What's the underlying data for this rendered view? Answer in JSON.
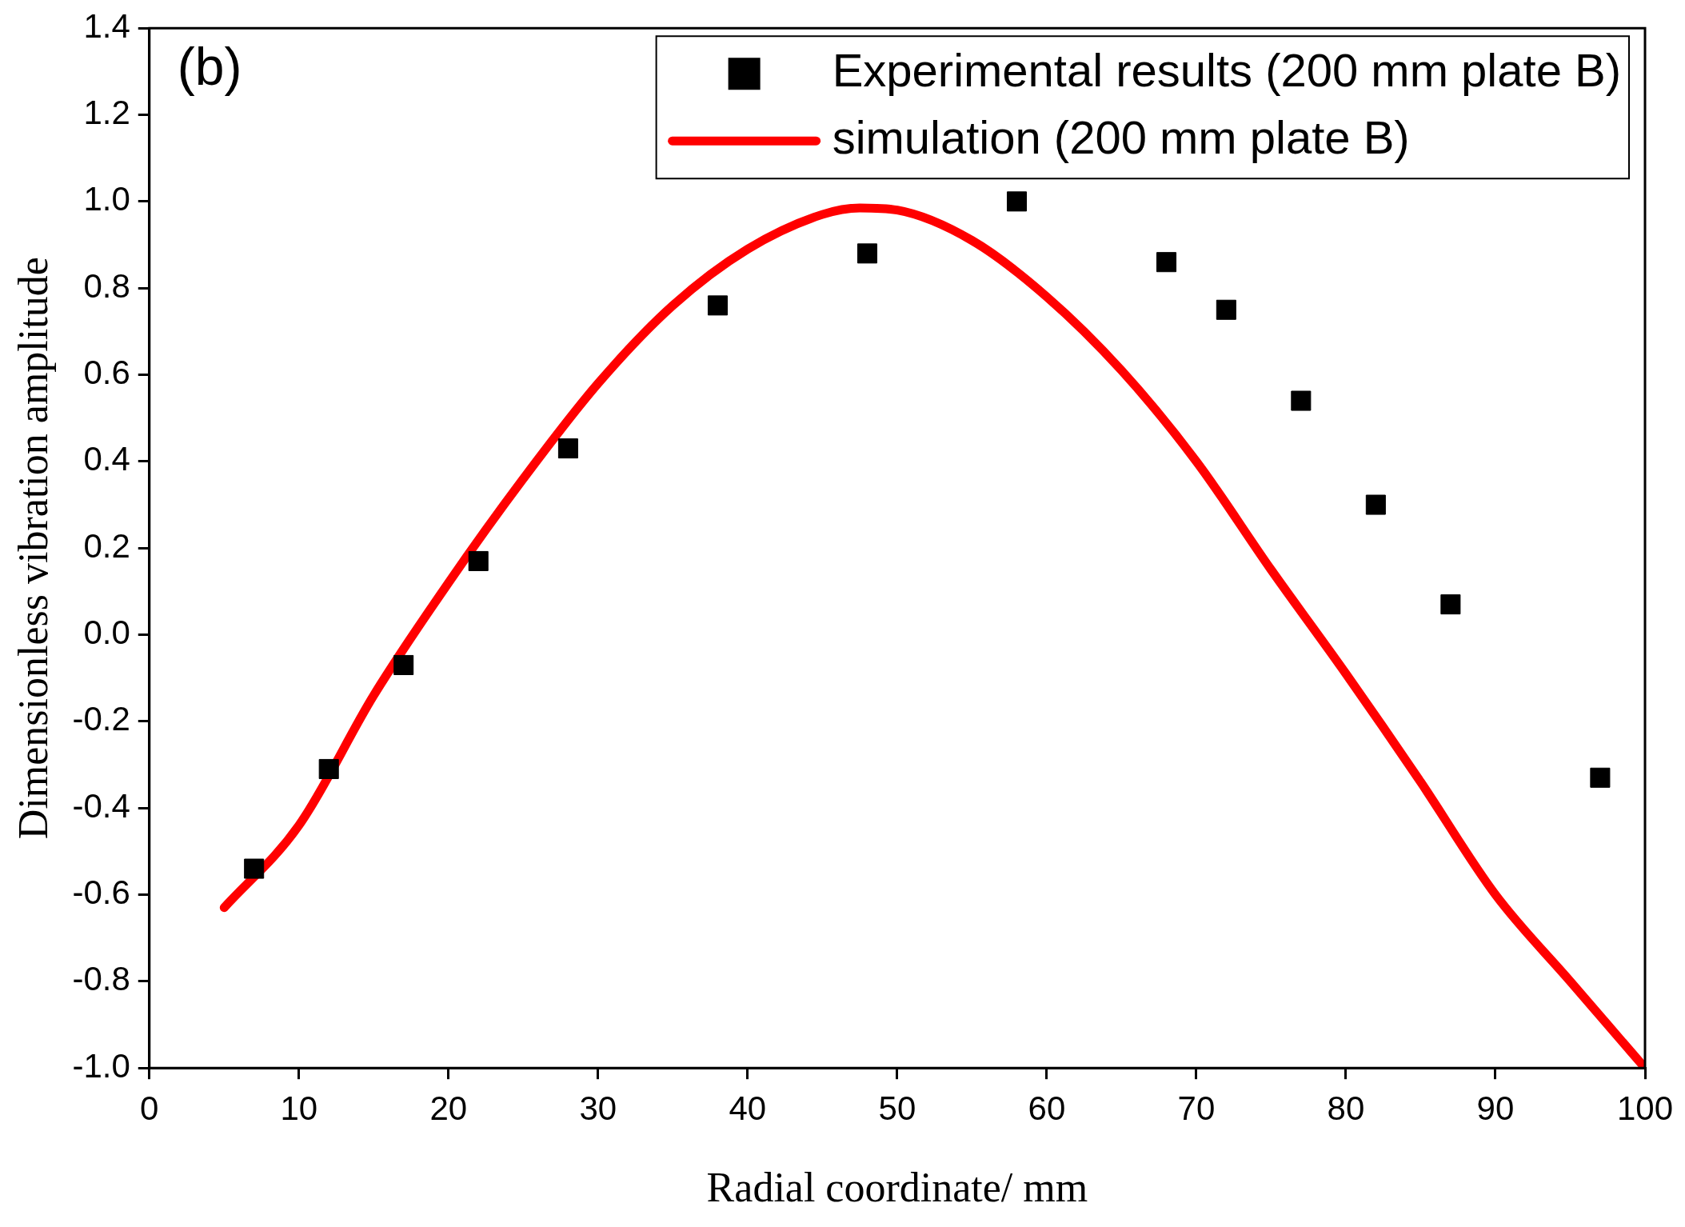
{
  "chart_data": {
    "type": "scatter",
    "xlabel": "Radial coordinate/ mm",
    "ylabel": "Dimensionless vibration amplitude",
    "annotations": [
      "(b)"
    ],
    "xlim": [
      0,
      100
    ],
    "xticks": [
      0,
      10,
      20,
      30,
      40,
      50,
      60,
      70,
      80,
      90,
      100
    ],
    "ylim": [
      -1.0,
      1.4
    ],
    "yticks": [
      {
        "value": -1.0,
        "label": "-1.0"
      },
      {
        "value": -0.8,
        "label": "-0.8"
      },
      {
        "value": -0.6,
        "label": "-0.6"
      },
      {
        "value": -0.4,
        "label": "-0.4"
      },
      {
        "value": -0.2,
        "label": "-0.2"
      },
      {
        "value": 0,
        "label": "0.0"
      },
      {
        "value": 0.2,
        "label": "0.2"
      },
      {
        "value": 0.4,
        "label": "0.4"
      },
      {
        "value": 0.6,
        "label": "0.6"
      },
      {
        "value": 0.8,
        "label": "0.8"
      },
      {
        "value": 1.0,
        "label": "1.0"
      },
      {
        "value": 1.2,
        "label": "1.2"
      },
      {
        "value": 1.4,
        "label": "1.4"
      }
    ],
    "grid": false,
    "legend": "top right",
    "series": [
      {
        "name": "Experimental results (200 mm plate B)",
        "marker": "square",
        "color": "#000000",
        "x": [
          7,
          12,
          17,
          22,
          28,
          38,
          48,
          58,
          68,
          72,
          77,
          82,
          87,
          97
        ],
        "values": [
          -0.54,
          -0.31,
          -0.07,
          0.17,
          0.43,
          0.76,
          0.88,
          1.0,
          0.86,
          0.75,
          0.54,
          0.3,
          0.07,
          -0.33
        ]
      },
      {
        "name": "simulation (200 mm plate B)",
        "type": "line",
        "marker": "none",
        "line_style": "solid",
        "color": "#ff0000",
        "x": [
          5,
          10,
          15,
          20,
          25,
          30,
          35,
          40,
          45,
          47.5,
          50,
          55,
          60,
          65,
          70,
          75,
          80,
          85,
          90,
          95,
          100
        ],
        "values": [
          -0.63,
          -0.44,
          -0.14,
          0.12,
          0.36,
          0.58,
          0.76,
          0.89,
          0.97,
          0.985,
          0.98,
          0.91,
          0.78,
          0.61,
          0.4,
          0.15,
          -0.09,
          -0.34,
          -0.6,
          -0.8,
          -1.0
        ]
      }
    ]
  }
}
